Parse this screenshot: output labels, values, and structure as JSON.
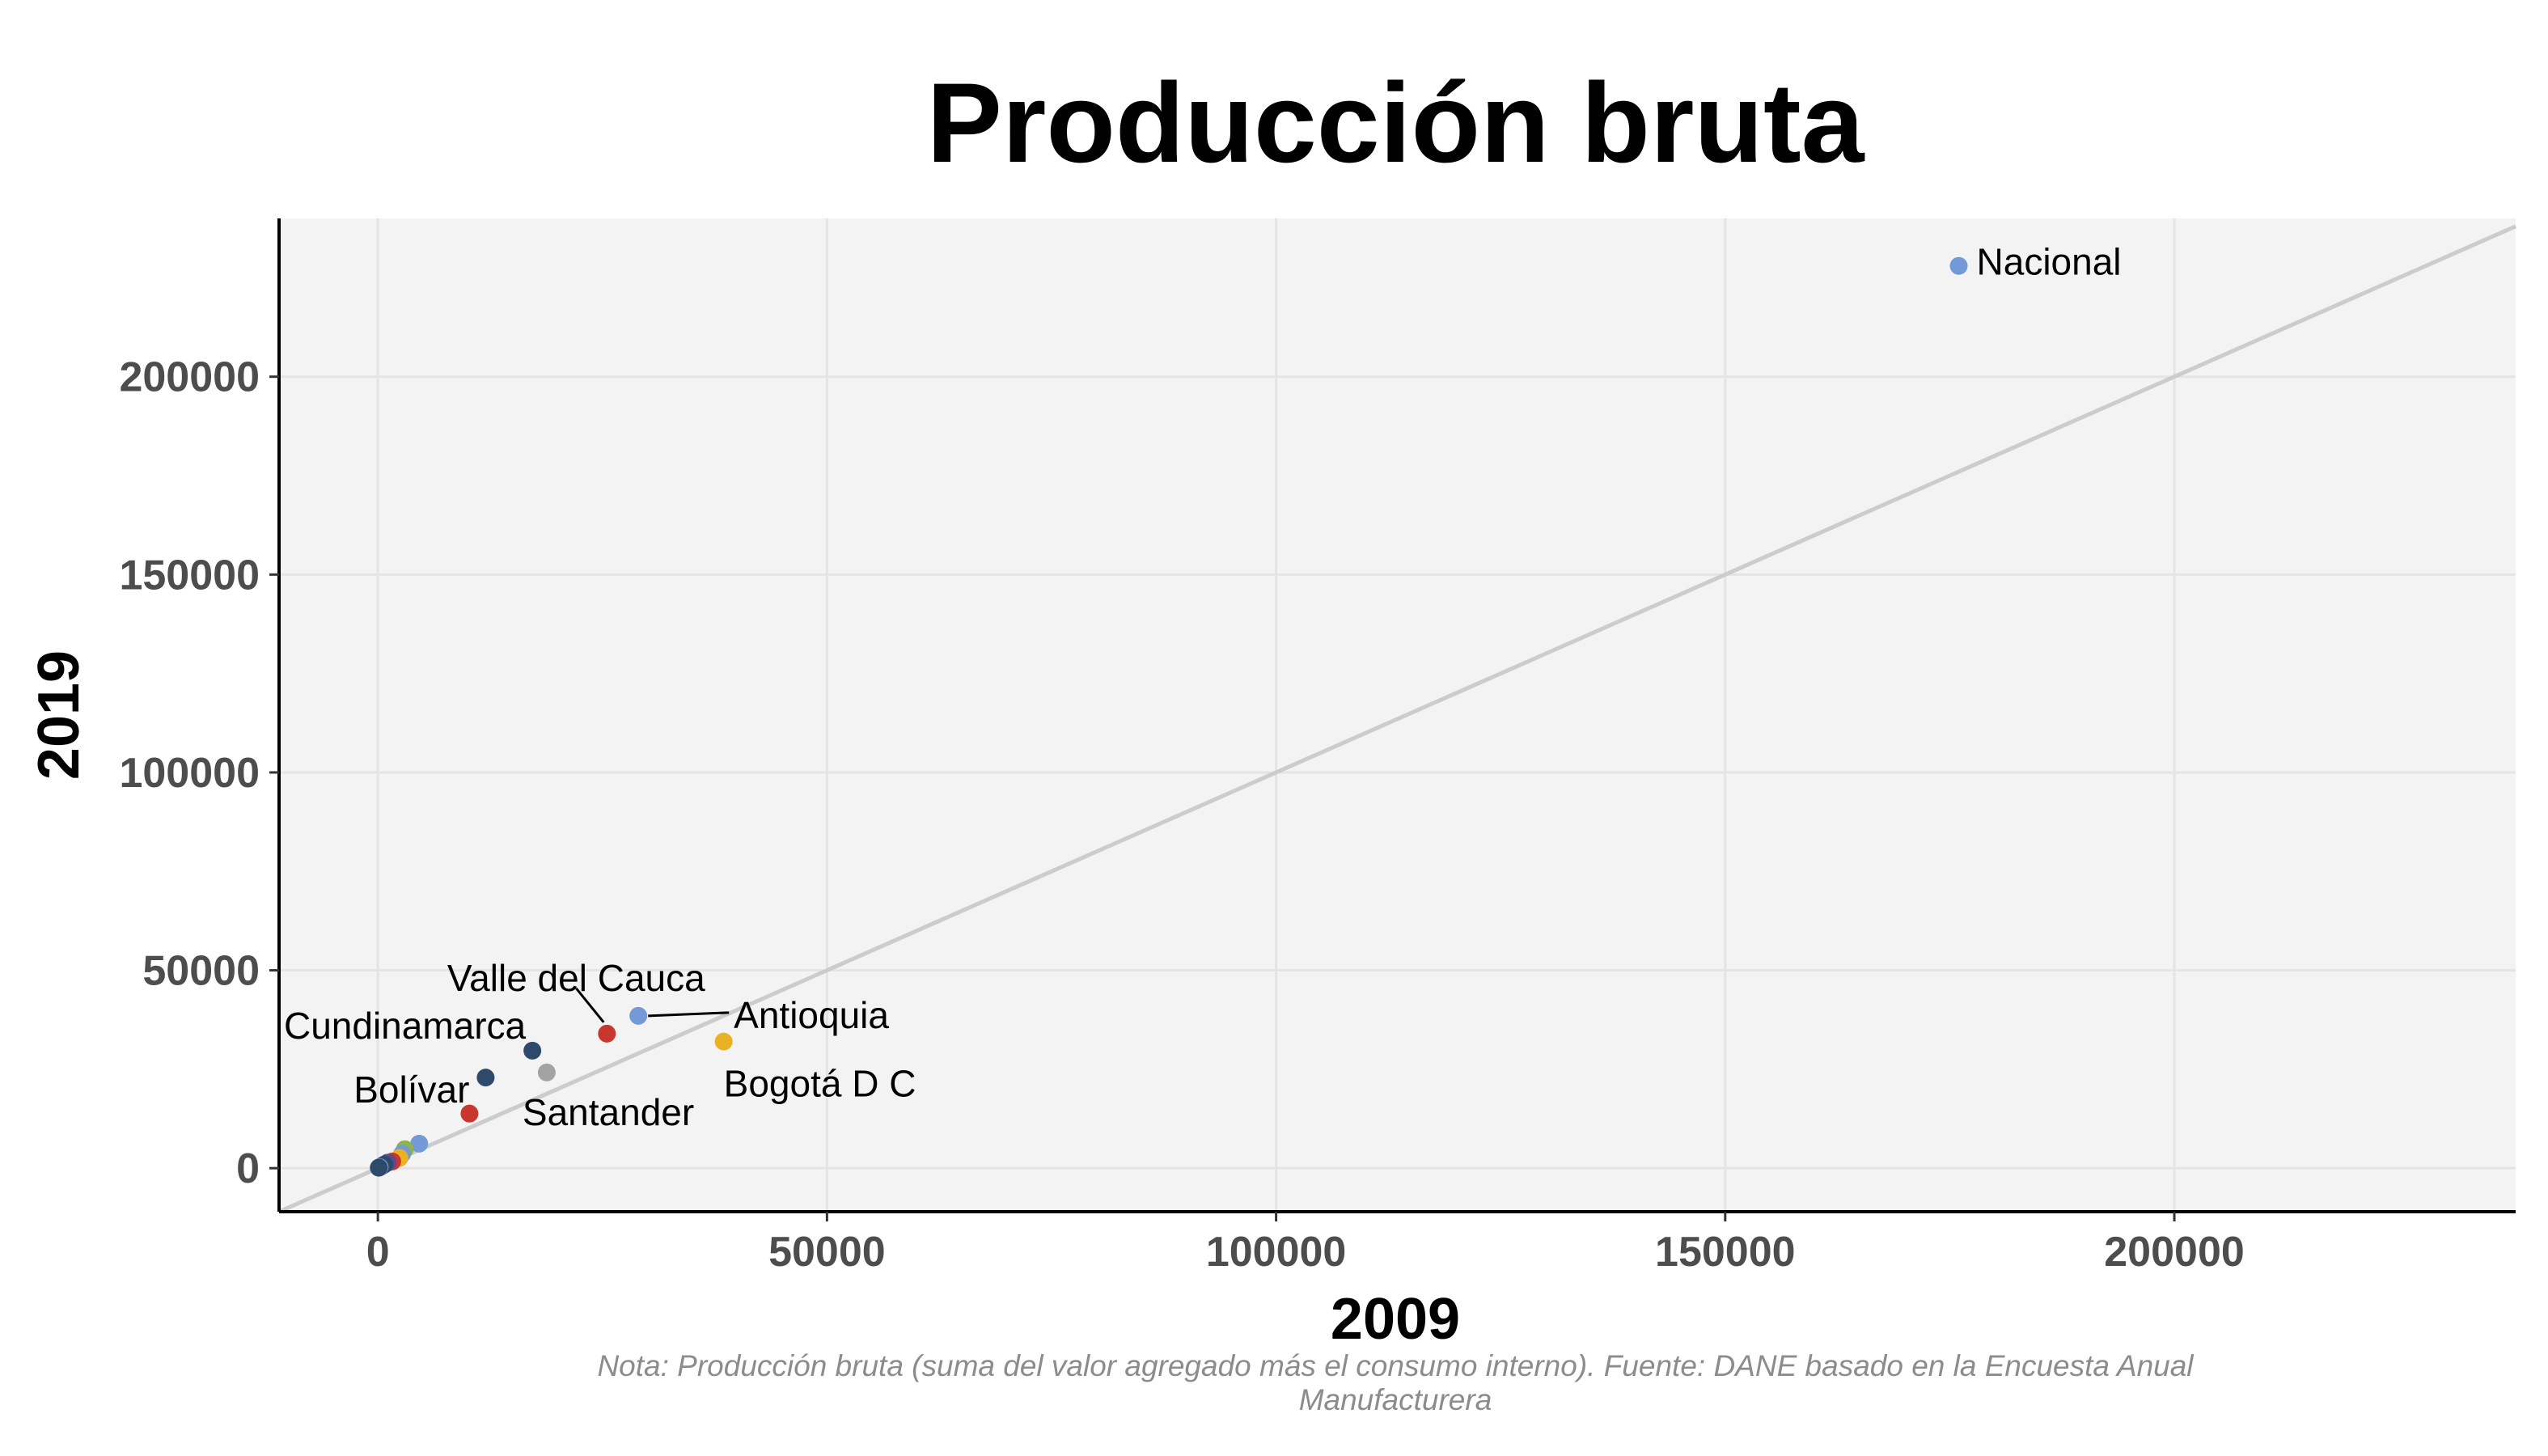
{
  "chart_data": {
    "type": "scatter",
    "title": "Producción bruta",
    "xlabel": "2009",
    "ylabel": "2019",
    "xlim": [
      -11000,
      238000
    ],
    "ylim": [
      -11000,
      240000
    ],
    "x_ticks": [
      0,
      50000,
      100000,
      150000,
      200000
    ],
    "y_ticks": [
      0,
      50000,
      100000,
      150000,
      200000
    ],
    "x_tick_labels": [
      "0",
      "50000",
      "100000",
      "150000",
      "200000"
    ],
    "y_tick_labels": [
      "0",
      "50000",
      "100000",
      "150000",
      "200000"
    ],
    "grid": true,
    "reference_line": "y = x",
    "points": [
      {
        "label": "Nacional",
        "x": 176000,
        "y": 228000,
        "color": "#7399d6"
      },
      {
        "label": "Bogotá D C",
        "x": 38500,
        "y": 32000,
        "color": "#e8b224"
      },
      {
        "label": "Antioquia",
        "x": 29000,
        "y": 38500,
        "color": "#7399d6"
      },
      {
        "label": "Valle del Cauca",
        "x": 25500,
        "y": 34000,
        "color": "#c8372d"
      },
      {
        "label": "Santander",
        "x": 18800,
        "y": 24200,
        "color": "#a3a3a3"
      },
      {
        "label": "Cundinamarca",
        "x": 17200,
        "y": 29700,
        "color": "#2e4a6b"
      },
      {
        "label": "Bolívar",
        "x": 12000,
        "y": 22900,
        "color": "#2e4a6b"
      },
      {
        "label": "",
        "x": 10200,
        "y": 13800,
        "color": "#c8372d"
      },
      {
        "label": "",
        "x": 4600,
        "y": 6200,
        "color": "#7399d6"
      },
      {
        "label": "",
        "x": 3000,
        "y": 4800,
        "color": "#8fb34f"
      },
      {
        "label": "",
        "x": 2700,
        "y": 3600,
        "color": "#7399d6"
      },
      {
        "label": "",
        "x": 2400,
        "y": 2600,
        "color": "#e8b224"
      },
      {
        "label": "",
        "x": 1600,
        "y": 1700,
        "color": "#c8372d"
      },
      {
        "label": "",
        "x": 1100,
        "y": 1400,
        "color": "#5b4b8a"
      },
      {
        "label": "",
        "x": 700,
        "y": 900,
        "color": "#2e4a6b"
      },
      {
        "label": "",
        "x": 400,
        "y": 500,
        "color": "#2e4a6b"
      },
      {
        "label": "",
        "x": 200,
        "y": 250,
        "color": "#7399d6"
      },
      {
        "label": "",
        "x": 100,
        "y": 120,
        "color": "#2e4a6b"
      }
    ],
    "note": "Nota: Producción bruta (suma del valor agregado más el consumo interno). Fuente: DANE basado en la Encuesta Anual Manufacturera"
  },
  "colors": {
    "panel_background": "#f3f3f3",
    "grid": "#e4e4e4",
    "reference_line": "#cccccc",
    "axis": "#000000",
    "tick_label": "#4d4d4d",
    "note": "#8c8c8c"
  }
}
